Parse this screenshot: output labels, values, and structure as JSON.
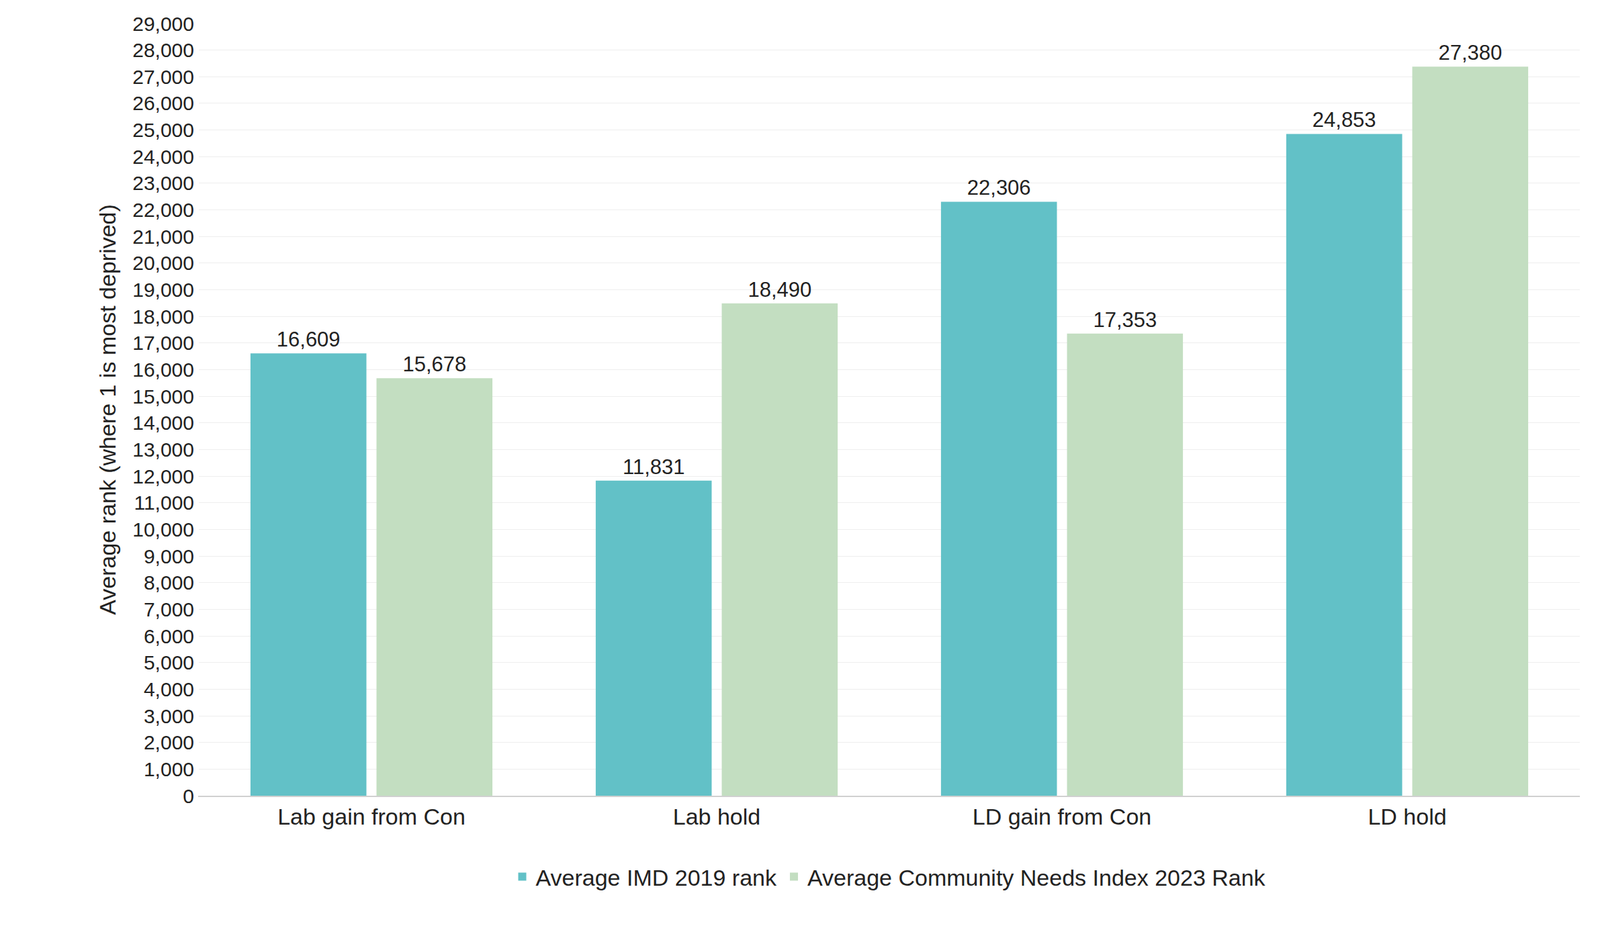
{
  "chart_data": {
    "type": "bar",
    "y_label": "Average rank (where 1 is most deprived)",
    "categories": [
      "Lab gain from Con",
      "Lab hold",
      "LD gain from Con",
      "LD hold"
    ],
    "series": [
      {
        "name": "Average IMD 2019 rank",
        "color": "#62c1c7",
        "values": [
          16609,
          11831,
          22306,
          24853
        ],
        "value_labels": [
          "16,609",
          "11,831",
          "22,306",
          "24,853"
        ]
      },
      {
        "name": "Average Community Needs Index 2023 Rank",
        "color": "#c3dec1",
        "values": [
          15678,
          18490,
          17353,
          27380
        ],
        "value_labels": [
          "15,678",
          "18,490",
          "17,353",
          "27,380"
        ]
      }
    ],
    "ylim": [
      0,
      29000
    ],
    "yticks": [
      0,
      {
        "value": 1000,
        "label": "1,000"
      },
      {
        "value": 2000,
        "label": "2,000"
      },
      {
        "value": 3000,
        "label": "3,000"
      },
      {
        "value": 4000,
        "label": "4,000"
      },
      {
        "value": 5000,
        "label": "5,000"
      },
      {
        "value": 6000,
        "label": "6,000"
      },
      {
        "value": 7000,
        "label": "7,000"
      },
      {
        "value": 8000,
        "label": "8,000"
      },
      {
        "value": 9000,
        "label": "9,000"
      },
      {
        "value": 10000,
        "label": "10,000"
      },
      {
        "value": 11000,
        "label": "11,000"
      },
      {
        "value": 12000,
        "label": "12,000"
      },
      {
        "value": 13000,
        "label": "13,000"
      },
      {
        "value": 14000,
        "label": "14,000"
      },
      {
        "value": 15000,
        "label": "15,000"
      },
      {
        "value": 16000,
        "label": "16,000"
      },
      {
        "value": 17000,
        "label": "17,000"
      },
      {
        "value": 18000,
        "label": "18,000"
      },
      {
        "value": 19000,
        "label": "19,000"
      },
      {
        "value": 20000,
        "label": "20,000"
      },
      {
        "value": 21000,
        "label": "21,000"
      },
      {
        "value": 22000,
        "label": "22,000"
      },
      {
        "value": 23000,
        "label": "23,000"
      },
      {
        "value": 24000,
        "label": "24,000"
      },
      {
        "value": 25000,
        "label": "25,000"
      },
      {
        "value": 26000,
        "label": "26,000"
      },
      {
        "value": 27000,
        "label": "27,000"
      },
      {
        "value": 28000,
        "label": "28,000"
      },
      {
        "value": 29000,
        "label": "29,000"
      }
    ],
    "grid": true,
    "legend": "bottom",
    "data_labels": true
  }
}
